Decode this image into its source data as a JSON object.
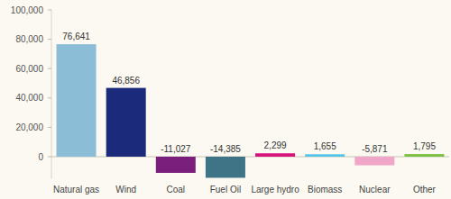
{
  "chart_data": {
    "type": "bar",
    "categories": [
      "Natural gas",
      "Wind",
      "Coal",
      "Fuel Oil",
      "Large hydro",
      "Biomass",
      "Nuclear",
      "Other"
    ],
    "values": [
      76641,
      46856,
      -11027,
      -14385,
      2299,
      1655,
      -5871,
      1795
    ],
    "value_labels": [
      "76,641",
      "46,856",
      "-11,027",
      "-14,385",
      "2,299",
      "1,655",
      "-5,871",
      "1,795"
    ],
    "colors": [
      "#8cbdd6",
      "#1c2a7c",
      "#7a1f7c",
      "#3f7486",
      "#d8137c",
      "#52c4e8",
      "#f0a6c6",
      "#7cc043"
    ],
    "ylim": [
      -15000,
      100000
    ],
    "yticks": [
      0,
      {
        "value": 20000,
        "label": "20,000"
      },
      {
        "value": 40000,
        "label": "40,000"
      },
      {
        "value": 60000,
        "label": "60,000"
      },
      {
        "value": 80000,
        "label": "80,000"
      },
      {
        "value": 100000,
        "label": "100,000"
      }
    ],
    "grid": false,
    "data_labels": true
  }
}
